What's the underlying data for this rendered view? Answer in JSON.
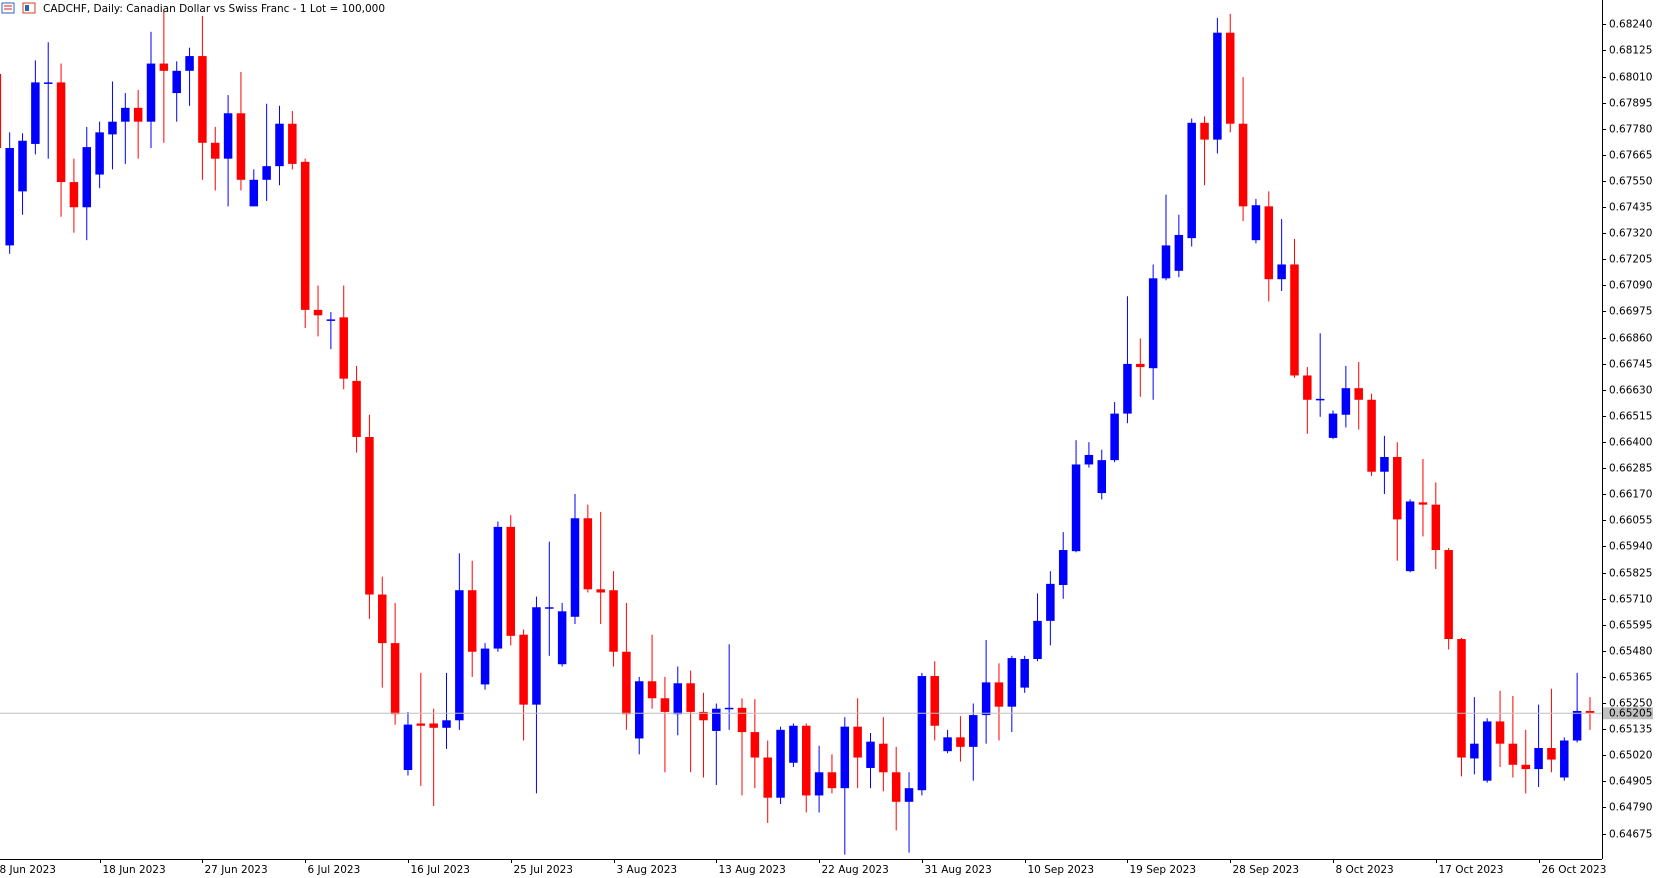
{
  "chart_data": {
    "type": "candlestick",
    "title": "CADCHF, Daily:  Canadian Dollar vs Swiss Franc - 1 Lot = 100,000",
    "up_color": "#0000ff",
    "down_color": "#ff0000",
    "categories": [
      "8 Jun 2023",
      null,
      null,
      null,
      null,
      null,
      null,
      null,
      "18 Jun 2023",
      null,
      null,
      null,
      null,
      null,
      null,
      null,
      "27 Jun 2023",
      null,
      null,
      null,
      null,
      null,
      null,
      null,
      "6 Jul 2023",
      null,
      null,
      null,
      null,
      null,
      null,
      null,
      "16 Jul 2023",
      null,
      null,
      null,
      null,
      null,
      null,
      null,
      "25 Jul 2023",
      null,
      null,
      null,
      null,
      null,
      null,
      null,
      "3 Aug 2023",
      null,
      null,
      null,
      null,
      null,
      null,
      null,
      "13 Aug 2023",
      null,
      null,
      null,
      null,
      null,
      null,
      null,
      "22 Aug 2023",
      null,
      null,
      null,
      null,
      null,
      null,
      null,
      "31 Aug 2023",
      null,
      null,
      null,
      null,
      null,
      null,
      null,
      "10 Sep 2023",
      null,
      null,
      null,
      null,
      null,
      null,
      null,
      "19 Sep 2023",
      null,
      null,
      null,
      null,
      null,
      null,
      null,
      "28 Sep 2023",
      null,
      null,
      null,
      null,
      null,
      null,
      null,
      "8 Oct 2023",
      null,
      null,
      null,
      null,
      null,
      null,
      null,
      "17 Oct 2023",
      null,
      null,
      null,
      null,
      null,
      null,
      null,
      "26 Oct 2023",
      null,
      null,
      null,
      null
    ],
    "open": [
      0.68021,
      0.67266,
      0.67504,
      0.67713,
      0.67979,
      0.67984,
      0.67545,
      0.67434,
      0.67578,
      0.67755,
      0.67811,
      0.67872,
      0.67811,
      0.68067,
      0.67937,
      0.68035,
      0.681,
      0.67718,
      0.67648,
      0.67848,
      0.67438,
      0.67555,
      0.67615,
      0.67802,
      0.67634,
      0.66982,
      0.66935,
      0.66949,
      0.66669,
      0.66422,
      0.65728,
      0.65514,
      0.64955,
      0.6516,
      0.6516,
      0.65141,
      0.65174,
      0.65747,
      0.65332,
      0.6549,
      0.66026,
      0.65551,
      0.65243,
      0.65667,
      0.65421,
      0.6563,
      0.66064,
      0.65751,
      0.65747,
      0.65476,
      0.65094,
      0.65346,
      0.65271,
      0.65201,
      0.65337,
      0.65211,
      0.65127,
      0.65225,
      0.65229,
      0.65122,
      0.6501,
      0.64833,
      0.64987,
      0.6515,
      0.64843,
      0.64945,
      0.64875,
      0.65146,
      0.64964,
      0.65071,
      0.64945,
      0.64815,
      0.64866,
      0.65369,
      0.65038,
      0.65099,
      0.65057,
      0.65197,
      0.65341,
      0.65234,
      0.65318,
      0.65444,
      0.65612,
      0.6577,
      0.65919,
      0.66301,
      0.66175,
      0.6632,
      0.66525,
      0.66744,
      0.66725,
      0.67121,
      0.67154,
      0.67298,
      0.67806,
      0.67732,
      0.68203,
      0.67802,
      0.67289,
      0.67438,
      0.67117,
      0.67182,
      0.66693,
      0.66586,
      0.66418,
      0.6652,
      0.66637,
      0.66586,
      0.66269,
      0.66334,
      0.65831,
      0.66134,
      0.66124,
      0.65924,
      0.65532,
      0.65006,
      0.64908,
      0.65169,
      0.65071,
      0.64978,
      0.64959,
      0.65052,
      0.64922,
      0.65085,
      0.65215
    ],
    "high": [
      0.68067,
      0.67764,
      0.6776,
      0.68081,
      0.68161,
      0.68067,
      0.67648,
      0.67788,
      0.67811,
      0.67988,
      0.67937,
      0.67951,
      0.68207,
      0.683,
      0.68077,
      0.68137,
      0.68277,
      0.67788,
      0.67928,
      0.6803,
      0.67601,
      0.6789,
      0.67881,
      0.67858,
      0.67648,
      0.67089,
      0.66972,
      0.67089,
      0.66735,
      0.6652,
      0.65807,
      0.65691,
      0.65211,
      0.65383,
      0.65225,
      0.65383,
      0.6591,
      0.65877,
      0.65514,
      0.6605,
      0.66078,
      0.65574,
      0.65719,
      0.65961,
      0.65691,
      0.66171,
      0.66124,
      0.66092,
      0.65831,
      0.65691,
      0.65365,
      0.65551,
      0.65365,
      0.65411,
      0.65393,
      0.65295,
      0.65248,
      0.65509,
      0.65271,
      0.65267,
      0.65085,
      0.65146,
      0.6516,
      0.6516,
      0.65062,
      0.65024,
      0.65188,
      0.65271,
      0.65118,
      0.65188,
      0.65057,
      0.64945,
      0.65383,
      0.65434,
      0.65132,
      0.65192,
      0.65248,
      0.65528,
      0.65425,
      0.65458,
      0.65458,
      0.65733,
      0.65831,
      0.66003,
      0.66408,
      0.66399,
      0.66366,
      0.66576,
      0.67042,
      0.66856,
      0.67182,
      0.6749,
      0.67401,
      0.67825,
      0.67834,
      0.68268,
      0.68286,
      0.68007,
      0.67471,
      0.67504,
      0.67382,
      0.67294,
      0.6673,
      0.66879,
      0.66539,
      0.66735,
      0.66753,
      0.66613,
      0.66427,
      0.66399,
      0.66147,
      0.66325,
      0.66222,
      0.65933,
      0.65537,
      0.65276,
      0.65183,
      0.65304,
      0.65281,
      0.65132,
      0.65243,
      0.65313,
      0.65099,
      0.65383,
      0.65276
    ],
    "low": [
      0.67648,
      0.67229,
      0.67401,
      0.67667,
      0.67648,
      0.67392,
      0.67322,
      0.67289,
      0.67518,
      0.67601,
      0.67625,
      0.67648,
      0.67695,
      0.67718,
      0.67811,
      0.67881,
      0.67555,
      0.67508,
      0.67438,
      0.67508,
      0.67438,
      0.67462,
      0.67531,
      0.67601,
      0.66902,
      0.66865,
      0.66809,
      0.66632,
      0.66353,
      0.65621,
      0.65318,
      0.65155,
      0.64931,
      0.64885,
      0.64796,
      0.65048,
      0.65132,
      0.65365,
      0.65309,
      0.65476,
      0.65504,
      0.65085,
      0.64852,
      0.65458,
      0.65411,
      0.65598,
      0.65737,
      0.65598,
      0.65411,
      0.65132,
      0.65024,
      0.65225,
      0.64945,
      0.65108,
      0.64945,
      0.64922,
      0.64889,
      0.65132,
      0.64843,
      0.64875,
      0.64722,
      0.64805,
      0.64968,
      0.64768,
      0.64768,
      0.64852,
      0.64582,
      0.64875,
      0.64875,
      0.64861,
      0.64689,
      0.64591,
      0.64843,
      0.65085,
      0.65029,
      0.64992,
      0.64908,
      0.65071,
      0.65085,
      0.65122,
      0.65295,
      0.65434,
      0.65504,
      0.65709,
      0.65914,
      0.66287,
      0.66147,
      0.66311,
      0.66483,
      0.66599,
      0.66586,
      0.67112,
      0.67126,
      0.67261,
      0.67531,
      0.67671,
      0.67764,
      0.67373,
      0.67275,
      0.67019,
      0.67065,
      0.66683,
      0.66436,
      0.66511,
      0.66413,
      0.66464,
      0.66455,
      0.6625,
      0.66171,
      0.65877,
      0.65826,
      0.65984,
      0.6584,
      0.65486,
      0.64927,
      0.64936,
      0.64899,
      0.64968,
      0.64922,
      0.64852,
      0.6488,
      0.64945,
      0.64908,
      0.65076,
      0.65132
    ],
    "close": [
      0.67695,
      0.67695,
      0.67727,
      0.67984,
      0.67984,
      0.67545,
      0.67434,
      0.67699,
      0.67764,
      0.67811,
      0.67872,
      0.67811,
      0.68067,
      0.68035,
      0.68035,
      0.681,
      0.67718,
      0.67648,
      0.67848,
      0.67555,
      0.67555,
      0.67615,
      0.67802,
      0.67625,
      0.66982,
      0.66958,
      0.6694,
      0.66679,
      0.66422,
      0.65728,
      0.65514,
      0.65201,
      0.65155,
      0.6515,
      0.65141,
      0.65174,
      0.65747,
      0.65476,
      0.6549,
      0.66026,
      0.65546,
      0.65243,
      0.65672,
      0.65672,
      0.65654,
      0.66064,
      0.65751,
      0.65737,
      0.65476,
      0.65201,
      0.65346,
      0.65271,
      0.65211,
      0.65337,
      0.65211,
      0.65174,
      0.65225,
      0.65229,
      0.65122,
      0.6501,
      0.64833,
      0.65132,
      0.6515,
      0.64843,
      0.64945,
      0.64875,
      0.65146,
      0.6501,
      0.6508,
      0.64945,
      0.64815,
      0.64875,
      0.65369,
      0.6515,
      0.65099,
      0.65057,
      0.65197,
      0.65341,
      0.65234,
      0.65448,
      0.65444,
      0.65612,
      0.65775,
      0.65924,
      0.66301,
      0.66343,
      0.6632,
      0.66525,
      0.66744,
      0.6673,
      0.67121,
      0.67266,
      0.67312,
      0.67806,
      0.67732,
      0.68203,
      0.67802,
      0.67438,
      0.67443,
      0.67117,
      0.67182,
      0.66693,
      0.66586,
      0.6659,
      0.66525,
      0.66637,
      0.66586,
      0.66269,
      0.66334,
      0.66059,
      0.66138,
      0.66124,
      0.65924,
      0.65532,
      0.6501,
      0.65071,
      0.65169,
      0.65071,
      0.64978,
      0.64959,
      0.65052,
      0.65001,
      0.65085,
      0.65215,
      0.65205
    ],
    "current_price": 0.65205,
    "ylim": [
      0.64563,
      0.68347
    ],
    "yticks": [
      {
        "value": 0.6824,
        "label": "0.68240"
      },
      0.68125,
      {
        "value": 0.6801,
        "label": "0.68010"
      },
      0.67895,
      {
        "value": 0.6778,
        "label": "0.67780"
      },
      0.67665,
      {
        "value": 0.6755,
        "label": "0.67550"
      },
      0.67435,
      {
        "value": 0.6732,
        "label": "0.67320"
      },
      0.67205,
      {
        "value": 0.6709,
        "label": "0.67090"
      },
      0.66975,
      {
        "value": 0.6686,
        "label": "0.66860"
      },
      0.66745,
      {
        "value": 0.6663,
        "label": "0.66630"
      },
      0.66515,
      {
        "value": 0.664,
        "label": "0.66400"
      },
      0.66285,
      {
        "value": 0.6617,
        "label": "0.66170"
      },
      0.66055,
      {
        "value": 0.6594,
        "label": "0.65940"
      },
      0.65825,
      {
        "value": 0.6571,
        "label": "0.65710"
      },
      0.65595,
      {
        "value": 0.6548,
        "label": "0.65480"
      },
      0.65365,
      {
        "value": 0.6525,
        "label": "0.65250"
      },
      0.65135,
      {
        "value": 0.6502,
        "label": "0.65020"
      },
      0.64905,
      {
        "value": 0.6479,
        "label": "0.64790"
      },
      0.64675
    ]
  }
}
